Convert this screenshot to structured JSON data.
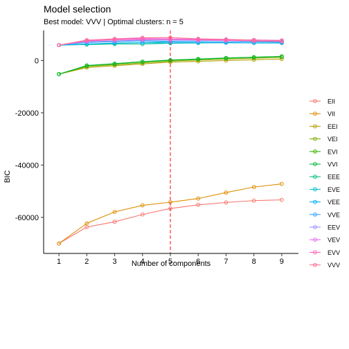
{
  "chart_data": {
    "type": "line",
    "title": "Model selection",
    "subtitle": "Best model: VVV | Optimal clusters: n = 5",
    "xlabel": "Number of components",
    "ylabel": "BIC",
    "x": [
      1,
      2,
      3,
      4,
      5,
      6,
      7,
      8,
      9
    ],
    "xlim": [
      0.45,
      9.6
    ],
    "ylim": [
      -73800,
      11500
    ],
    "yticks": [
      0,
      -20000,
      -40000,
      -60000
    ],
    "ytick_labels": [
      "0",
      "-20000",
      "-40000",
      "-60000"
    ],
    "vline": {
      "x": 5,
      "color": "#F8202B",
      "style": "dashed"
    },
    "grid": false,
    "legend_position": "right",
    "series": [
      {
        "name": "EII",
        "color": "#F8766D",
        "values": [
          -70000,
          -63700,
          -61700,
          -58900,
          -56600,
          -55200,
          -54300,
          -53600,
          -53300
        ]
      },
      {
        "name": "VII",
        "color": "#DE8C00",
        "values": [
          -70000,
          -62300,
          -57900,
          -55400,
          -54200,
          -52800,
          -50500,
          -48400,
          -47200
        ]
      },
      {
        "name": "EEI",
        "color": "#B79F00",
        "values": [
          -5200,
          -2700,
          -2000,
          -1300,
          -600,
          -300,
          0,
          300,
          600
        ]
      },
      {
        "name": "VEI",
        "color": "#7CAE00",
        "values": [
          -5200,
          -2300,
          -1600,
          -900,
          -200,
          200,
          600,
          900,
          1200
        ]
      },
      {
        "name": "EVI",
        "color": "#39B600",
        "values": [
          -5200,
          -2000,
          -1300,
          -500,
          100,
          500,
          900,
          1200,
          1500
        ]
      },
      {
        "name": "VVI",
        "color": "#00BA38",
        "values": [
          -5200,
          -1900,
          -1200,
          -400,
          200,
          600,
          1000,
          1300,
          1600
        ]
      },
      {
        "name": "EEE",
        "color": "#00BF7D",
        "values": [
          5900,
          6100,
          6300,
          6300,
          6600,
          6700,
          6800,
          6700,
          6700
        ]
      },
      {
        "name": "EVE",
        "color": "#00BFC4",
        "values": [
          5900,
          6300,
          6700,
          6900,
          7100,
          7100,
          7100,
          7100,
          7100
        ]
      },
      {
        "name": "VEE",
        "color": "#00B0F6",
        "values": [
          5900,
          6300,
          6600,
          6800,
          6700,
          6800,
          6800,
          6700,
          6700
        ]
      },
      {
        "name": "VVE",
        "color": "#35A2FF",
        "values": [
          5900,
          6900,
          7200,
          7500,
          7300,
          7200,
          7100,
          7200,
          7000
        ]
      },
      {
        "name": "EEV",
        "color": "#9590FF",
        "values": [
          5900,
          7200,
          7500,
          7800,
          7800,
          7700,
          7600,
          7500,
          7400
        ]
      },
      {
        "name": "VEV",
        "color": "#E76BF3",
        "values": [
          5900,
          7700,
          8200,
          8400,
          8300,
          8100,
          7900,
          7900,
          7700
        ]
      },
      {
        "name": "EVV",
        "color": "#FF62BC",
        "values": [
          5900,
          7500,
          7900,
          8100,
          8100,
          7900,
          7700,
          7500,
          7300
        ]
      },
      {
        "name": "VVV",
        "color": "#FF6C91",
        "values": [
          5900,
          7800,
          8300,
          8700,
          8800,
          8300,
          8100,
          7800,
          7600
        ]
      }
    ]
  }
}
